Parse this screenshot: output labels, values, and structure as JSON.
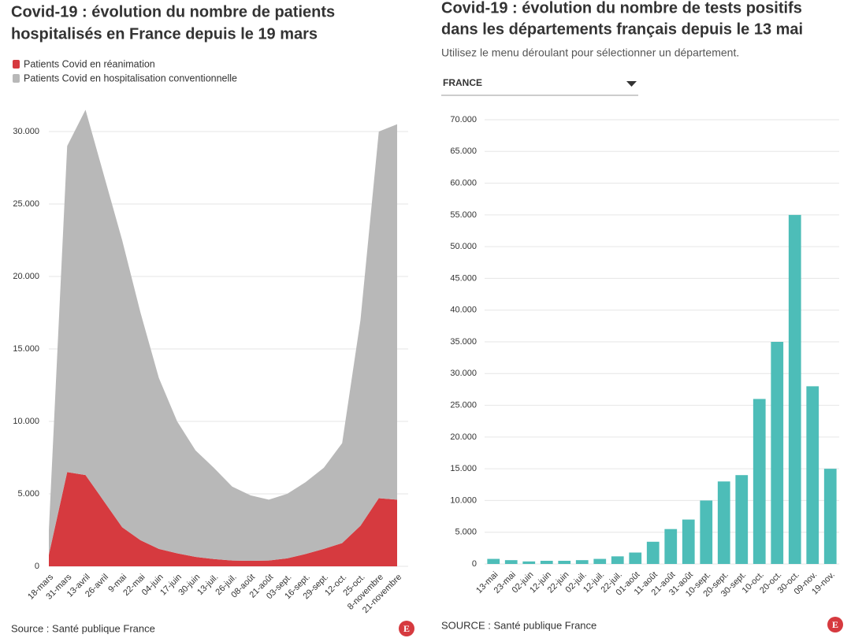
{
  "chart_data": [
    {
      "type": "stacked-area",
      "title": [
        "Covid-19 : évolution du nombre de patients",
        "hospitalisés en France depuis le 19 mars"
      ],
      "categories": [
        "18-mars",
        "31-mars",
        "13-avril",
        "26-avril",
        "9-mai",
        "22-mai",
        "04-juin",
        "17-juin",
        "30-juin",
        "13-juil.",
        "26-juil.",
        "08-août",
        "21-août",
        "03-sept.",
        "16-sept.",
        "29-sept.",
        "12-oct.",
        "25-oct.",
        "8-novembre",
        "21-novembre"
      ],
      "series": [
        {
          "name": "Patients Covid en réanimation",
          "color": "#d63a3f",
          "values": [
            800,
            6500,
            6300,
            4500,
            2700,
            1800,
            1200,
            900,
            650,
            500,
            400,
            380,
            400,
            550,
            850,
            1200,
            1600,
            2800,
            4700,
            4600
          ]
        },
        {
          "name": "Patients Covid en hospitalisation conventionnelle",
          "color": "#b8b8b8",
          "values": [
            1700,
            22500,
            25200,
            22500,
            19800,
            15700,
            11800,
            9100,
            7350,
            6300,
            5100,
            4520,
            4200,
            4450,
            4950,
            5600,
            6900,
            14200,
            25300,
            25900
          ]
        }
      ],
      "ylim": [
        0,
        32500
      ],
      "yticks": [
        0,
        {
          "value": 5000,
          "label": "5.000"
        },
        {
          "value": 10000,
          "label": "10.000"
        },
        {
          "value": 15000,
          "label": "15.000"
        },
        {
          "value": 20000,
          "label": "20.000"
        },
        {
          "value": 25000,
          "label": "25.000"
        },
        {
          "value": 30000,
          "label": "30.000"
        }
      ],
      "grid": true,
      "source": "Source : Santé publique France",
      "logo": "E"
    },
    {
      "type": "bar",
      "title": [
        "Covid-19 : évolution du nombre de tests positifs",
        "dans les départements français depuis le 13 mai"
      ],
      "subtitle": "Utilisez le menu déroulant pour sélectionner un département.",
      "dropdown": "FRANCE",
      "categories": [
        "13-mai",
        "23-mai",
        "02-juin",
        "12-juin",
        "22-juin",
        "02-juil.",
        "12-juil.",
        "22-juil.",
        "01-août",
        "11-août",
        "21-août",
        "31-août",
        "10-sept.",
        "20-sept.",
        "30-sept.",
        "10-oct.",
        "20-oct.",
        "30-oct.",
        "09-nov.",
        "19-nov."
      ],
      "values": [
        800,
        600,
        400,
        500,
        500,
        600,
        800,
        1200,
        1800,
        3500,
        5500,
        7000,
        10000,
        13000,
        14000,
        26000,
        35000,
        55000,
        28000,
        15000
      ],
      "color": "#4dbdb8",
      "ylim": [
        0,
        70000
      ],
      "yticks": [
        0,
        {
          "value": 5000,
          "label": "5.000"
        },
        {
          "value": 10000,
          "label": "10.000"
        },
        {
          "value": 15000,
          "label": "15.000"
        },
        {
          "value": 20000,
          "label": "20.000"
        },
        {
          "value": 25000,
          "label": "25.000"
        },
        {
          "value": 30000,
          "label": "30.000"
        },
        {
          "value": 35000,
          "label": "35.000"
        },
        {
          "value": 40000,
          "label": "40.000"
        },
        {
          "value": 45000,
          "label": "45.000"
        },
        {
          "value": 50000,
          "label": "50.000"
        },
        {
          "value": 55000,
          "label": "55.000"
        },
        {
          "value": 60000,
          "label": "60.000"
        },
        {
          "value": 65000,
          "label": "65.000"
        },
        {
          "value": 70000,
          "label": "70.000"
        }
      ],
      "grid": true,
      "source": "SOURCE : Santé publique France",
      "logo": "E"
    }
  ]
}
